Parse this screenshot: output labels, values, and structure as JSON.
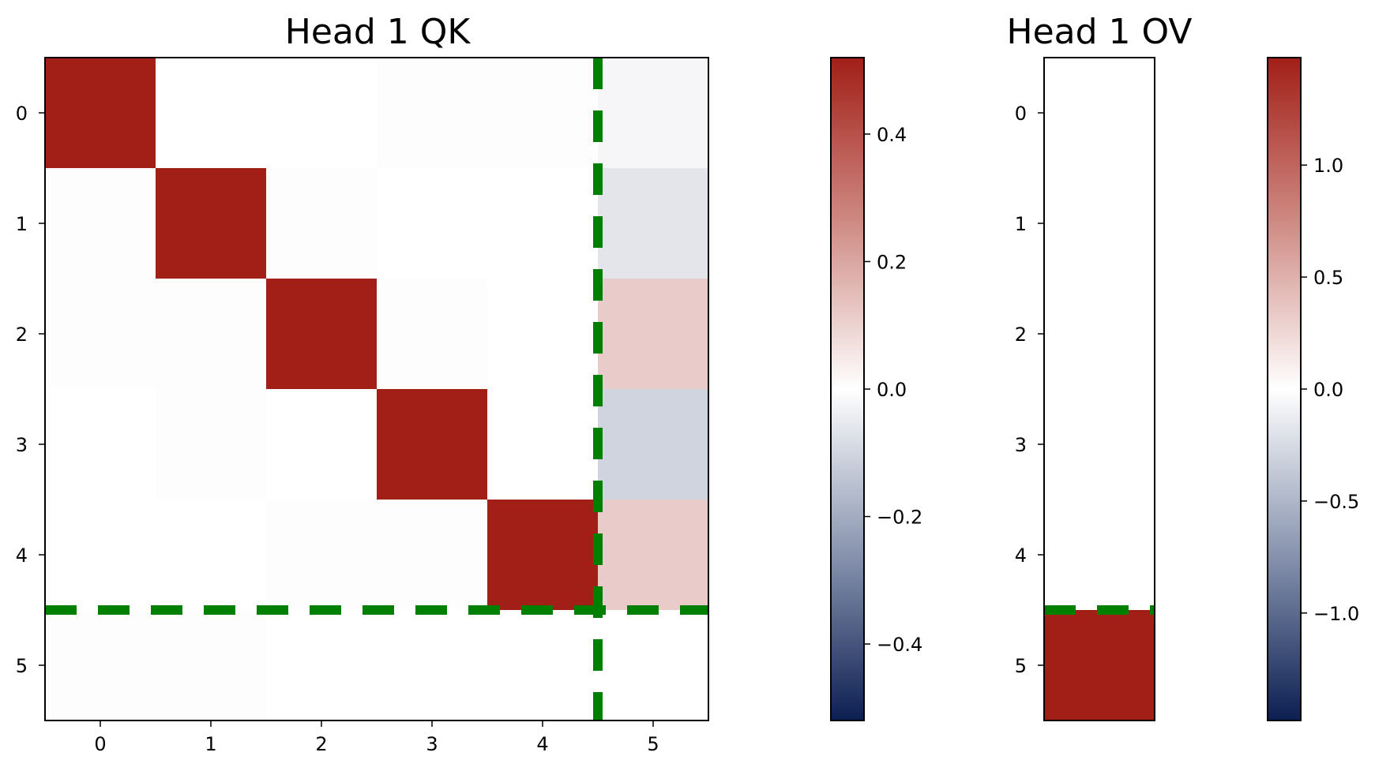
{
  "chart_data": [
    {
      "type": "heatmap",
      "title": "Head 1 QK",
      "x_ticks": [
        "0",
        "1",
        "2",
        "3",
        "4",
        "5"
      ],
      "y_ticks": [
        "0",
        "1",
        "2",
        "3",
        "4",
        "5"
      ],
      "values": [
        [
          0.52,
          0.0,
          0.0,
          -0.005,
          -0.005,
          -0.02
        ],
        [
          -0.005,
          0.52,
          -0.005,
          0.0,
          0.0,
          -0.06
        ],
        [
          -0.005,
          -0.005,
          0.52,
          -0.005,
          0.0,
          0.12
        ],
        [
          0.0,
          -0.005,
          0.0,
          0.52,
          0.0,
          -0.1
        ],
        [
          0.0,
          0.0,
          -0.005,
          -0.005,
          0.52,
          0.12
        ],
        [
          -0.005,
          -0.005,
          0.0,
          0.0,
          0.0,
          0.0
        ]
      ],
      "vmin": -0.52,
      "vmax": 0.52,
      "colorbar_ticks": [
        0.4,
        0.2,
        0.0,
        -0.2,
        -0.4
      ],
      "colorbar_tick_labels": [
        "0.4",
        "0.2",
        "0.0",
        "−0.2",
        "−0.4"
      ],
      "guides": {
        "vertical_line_x": 4.5,
        "horizontal_line_y": 4.5,
        "color": "#007f00",
        "style": "dashed"
      },
      "colormap": {
        "low": "#0c1f52",
        "mid": "#ffffff",
        "high": "#a11f17"
      }
    },
    {
      "type": "heatmap",
      "title": "Head 1 OV",
      "x_ticks": [],
      "y_ticks": [
        "0",
        "1",
        "2",
        "3",
        "4",
        "5"
      ],
      "values": [
        [
          0.0
        ],
        [
          0.0
        ],
        [
          0.0
        ],
        [
          0.0
        ],
        [
          0.0
        ],
        [
          1.48
        ]
      ],
      "vmin": -1.48,
      "vmax": 1.48,
      "colorbar_ticks": [
        1.0,
        0.5,
        0.0,
        -0.5,
        -1.0
      ],
      "colorbar_tick_labels": [
        "1.0",
        "0.5",
        "0.0",
        "−0.5",
        "−1.0"
      ],
      "guides": {
        "horizontal_line_y": 4.5,
        "color": "#007f00",
        "style": "dashed"
      },
      "colormap": {
        "low": "#0c1f52",
        "mid": "#ffffff",
        "high": "#a11f17"
      }
    }
  ]
}
